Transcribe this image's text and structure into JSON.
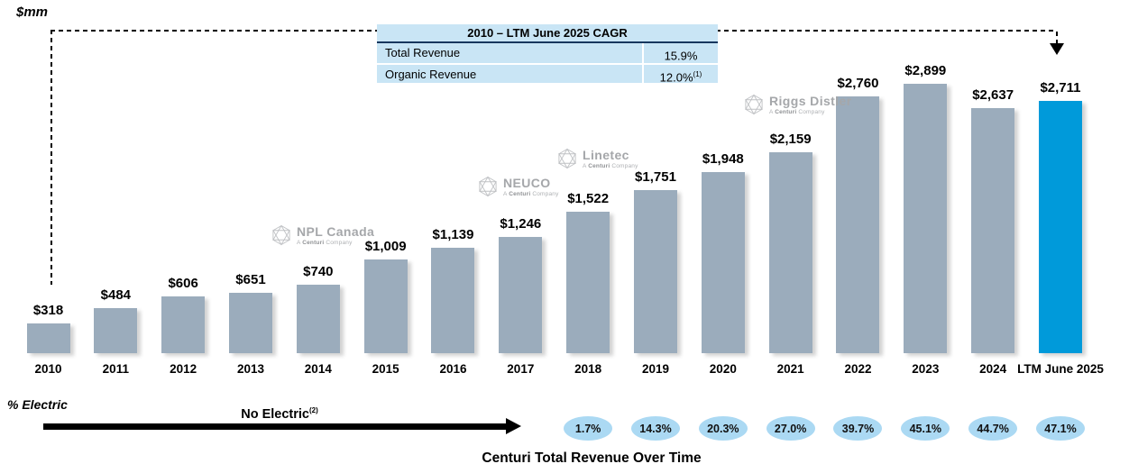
{
  "chart_data": {
    "type": "bar",
    "title": "Centuri Total Revenue Over Time",
    "unit_label": "$mm",
    "categories": [
      "2010",
      "2011",
      "2012",
      "2013",
      "2014",
      "2015",
      "2016",
      "2017",
      "2018",
      "2019",
      "2020",
      "2021",
      "2022",
      "2023",
      "2024",
      "LTM June 2025"
    ],
    "values": [
      318,
      484,
      606,
      651,
      740,
      1009,
      1139,
      1246,
      1522,
      1751,
      1948,
      2159,
      2760,
      2899,
      2637,
      2711
    ],
    "bar_labels": [
      "$318",
      "$484",
      "$606",
      "$651",
      "$740",
      "$1,009",
      "$1,139",
      "$1,246",
      "$1,522",
      "$1,751",
      "$1,948",
      "$2,159",
      "$2,760",
      "$2,899",
      "$2,637",
      "$2,711"
    ],
    "highlight_index": 15,
    "bar_color": "#9BACBC",
    "highlight_color": "#009ADA",
    "ylim": [
      0,
      2899
    ],
    "grid": false,
    "legend": "none"
  },
  "cagr_table": {
    "header": "2010 – LTM June 2025 CAGR",
    "rows": [
      {
        "label": "Total Revenue",
        "value": "15.9%",
        "sup": ""
      },
      {
        "label": "Organic Revenue",
        "value": "12.0%",
        "sup": "(1)"
      }
    ]
  },
  "logos": [
    {
      "name": "NPL Canada",
      "tagline_prefix": "A",
      "tagline_bold": "Centuri",
      "tagline_rest": "Company"
    },
    {
      "name": "NEUCO",
      "tagline_prefix": "A",
      "tagline_bold": "Centuri",
      "tagline_rest": "Company"
    },
    {
      "name": "Linetec",
      "tagline_prefix": "A",
      "tagline_bold": "Centuri",
      "tagline_rest": "Company"
    },
    {
      "name": "Riggs Distler",
      "tagline_prefix": "A",
      "tagline_bold": "Centuri",
      "tagline_rest": "Company"
    }
  ],
  "electric": {
    "axis_label": "% Electric",
    "no_electric_label": "No Electric",
    "no_electric_sup": "(2)",
    "values": [
      "1.7%",
      "14.3%",
      "20.3%",
      "27.0%",
      "39.7%",
      "45.1%",
      "44.7%",
      "47.1%"
    ],
    "first_category": "2018",
    "oval_color": "#ABD9F3"
  }
}
